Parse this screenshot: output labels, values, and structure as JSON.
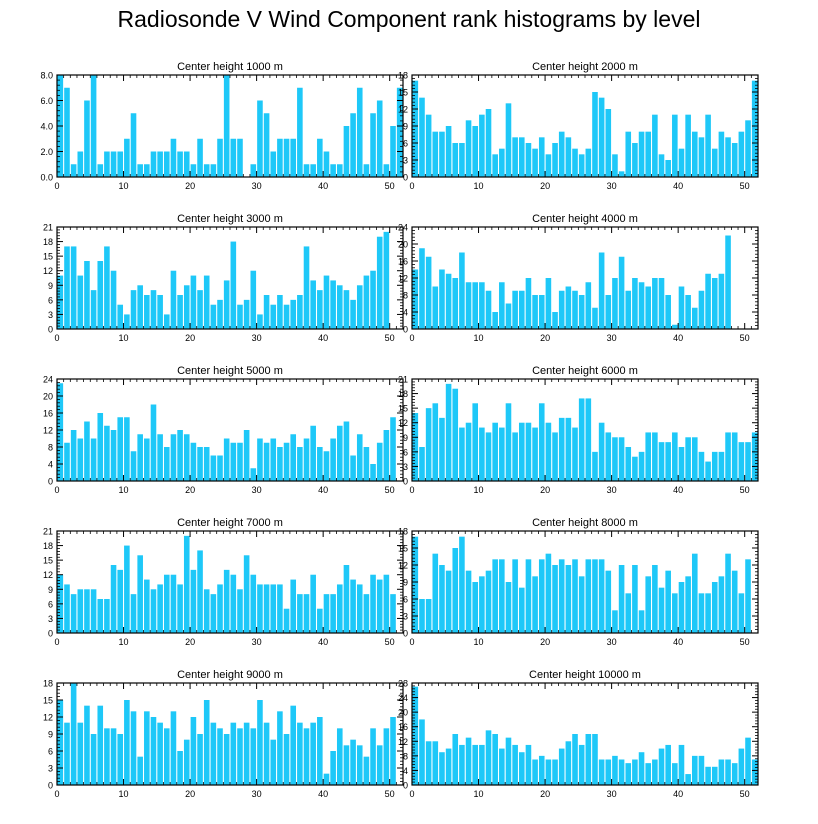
{
  "title": "Radiosonde V Wind Component rank histograms by level",
  "bar_color": "#1ec8f8",
  "chart_data": [
    {
      "type": "bar",
      "title": "Center height 1000 m",
      "xlabel": "",
      "ylabel": "",
      "xlim": [
        0,
        52
      ],
      "ylim": [
        0,
        8
      ],
      "yticks": [
        0,
        2,
        4,
        6,
        8
      ],
      "ytick_labels": [
        "0.0",
        "2.0",
        "4.0",
        "6.0",
        "8.0"
      ],
      "xticks": [
        0,
        10,
        20,
        30,
        40,
        50
      ],
      "values": [
        8,
        7,
        1,
        2,
        6,
        8,
        1,
        2,
        2,
        2,
        3,
        5,
        1,
        1,
        2,
        2,
        2,
        3,
        2,
        2,
        1,
        3,
        1,
        1,
        3,
        8,
        3,
        3,
        0,
        1,
        6,
        5,
        2,
        3,
        3,
        3,
        7,
        1,
        1,
        3,
        2,
        1,
        1,
        4,
        5,
        7,
        1,
        5,
        6,
        1,
        4,
        7
      ]
    },
    {
      "type": "bar",
      "title": "Center height 2000 m",
      "xlabel": "",
      "ylabel": "",
      "xlim": [
        0,
        52
      ],
      "ylim": [
        0,
        18
      ],
      "yticks": [
        0,
        3,
        6,
        9,
        12,
        15,
        18
      ],
      "ytick_labels": [
        "0",
        "3",
        "6",
        "9",
        "12",
        "15",
        "18"
      ],
      "xticks": [
        0,
        10,
        20,
        30,
        40,
        50
      ],
      "values": [
        17,
        14,
        11,
        8,
        8,
        9,
        6,
        6,
        10,
        9,
        11,
        12,
        4,
        5,
        13,
        7,
        7,
        6,
        5,
        7,
        4,
        6,
        8,
        7,
        5,
        4,
        5,
        15,
        14,
        12,
        4,
        1,
        8,
        6,
        8,
        8,
        11,
        4,
        3,
        11,
        5,
        11,
        8,
        7,
        11,
        5,
        8,
        7,
        6,
        8,
        10,
        17
      ]
    },
    {
      "type": "bar",
      "title": "Center height 3000 m",
      "xlabel": "",
      "ylabel": "",
      "xlim": [
        0,
        52
      ],
      "ylim": [
        0,
        21
      ],
      "yticks": [
        0,
        3,
        6,
        9,
        12,
        15,
        18,
        21
      ],
      "ytick_labels": [
        "0",
        "3",
        "6",
        "9",
        "12",
        "15",
        "18",
        "21"
      ],
      "xticks": [
        0,
        10,
        20,
        30,
        40,
        50
      ],
      "values": [
        11,
        17,
        17,
        11,
        14,
        8,
        14,
        17,
        12,
        5,
        3,
        8,
        9,
        7,
        8,
        7,
        3,
        12,
        7,
        9,
        11,
        8,
        11,
        5,
        6,
        10,
        18,
        5,
        6,
        12,
        3,
        7,
        5,
        7,
        5,
        6,
        7,
        17,
        10,
        8,
        11,
        10,
        9,
        8,
        6,
        9,
        11,
        12,
        19,
        20,
        0,
        0
      ]
    },
    {
      "type": "bar",
      "title": "Center height 4000 m",
      "xlabel": "",
      "ylabel": "",
      "xlim": [
        0,
        52
      ],
      "ylim": [
        0,
        24
      ],
      "yticks": [
        0,
        4,
        8,
        12,
        16,
        20,
        24
      ],
      "ytick_labels": [
        "0",
        "4",
        "8",
        "12",
        "16",
        "20",
        "24"
      ],
      "xticks": [
        0,
        10,
        20,
        30,
        40,
        50
      ],
      "values": [
        14,
        19,
        17,
        10,
        14,
        13,
        12,
        18,
        11,
        11,
        11,
        9,
        4,
        11,
        6,
        9,
        9,
        12,
        8,
        8,
        12,
        4,
        9,
        10,
        9,
        8,
        11,
        5,
        18,
        8,
        12,
        17,
        9,
        12,
        11,
        10,
        12,
        12,
        8,
        1,
        10,
        8,
        5,
        9,
        13,
        12,
        13,
        22,
        0,
        0,
        0,
        0
      ]
    },
    {
      "type": "bar",
      "title": "Center height 5000 m",
      "xlabel": "",
      "ylabel": "",
      "xlim": [
        0,
        52
      ],
      "ylim": [
        0,
        24
      ],
      "yticks": [
        0,
        4,
        8,
        12,
        16,
        20,
        24
      ],
      "ytick_labels": [
        "0",
        "4",
        "8",
        "12",
        "16",
        "20",
        "24"
      ],
      "xticks": [
        0,
        10,
        20,
        30,
        40,
        50
      ],
      "values": [
        23,
        9,
        12,
        10,
        14,
        10,
        16,
        13,
        12,
        15,
        15,
        7,
        11,
        10,
        18,
        11,
        8,
        11,
        12,
        11,
        9,
        8,
        8,
        6,
        6,
        10,
        9,
        9,
        12,
        3,
        10,
        9,
        10,
        8,
        9,
        11,
        8,
        10,
        13,
        8,
        7,
        10,
        13,
        14,
        6,
        11,
        8,
        4,
        9,
        12,
        15,
        0
      ]
    },
    {
      "type": "bar",
      "title": "Center height 6000 m",
      "xlabel": "",
      "ylabel": "",
      "xlim": [
        0,
        52
      ],
      "ylim": [
        0,
        21
      ],
      "yticks": [
        0,
        3,
        6,
        9,
        12,
        15,
        18,
        21
      ],
      "ytick_labels": [
        "0",
        "3",
        "6",
        "9",
        "12",
        "15",
        "18",
        "21"
      ],
      "xticks": [
        0,
        10,
        20,
        30,
        40,
        50
      ],
      "values": [
        14,
        7,
        15,
        16,
        13,
        20,
        19,
        11,
        12,
        16,
        11,
        10,
        12,
        11,
        16,
        10,
        12,
        12,
        11,
        16,
        12,
        10,
        13,
        13,
        11,
        17,
        17,
        6,
        12,
        10,
        9,
        9,
        7,
        5,
        6,
        10,
        10,
        8,
        8,
        10,
        7,
        9,
        9,
        6,
        4,
        6,
        6,
        10,
        10,
        8,
        8,
        10
      ]
    },
    {
      "type": "bar",
      "title": "Center height 7000 m",
      "xlabel": "",
      "ylabel": "",
      "xlim": [
        0,
        52
      ],
      "ylim": [
        0,
        21
      ],
      "yticks": [
        0,
        3,
        6,
        9,
        12,
        15,
        18,
        21
      ],
      "ytick_labels": [
        "0",
        "3",
        "6",
        "9",
        "12",
        "15",
        "18",
        "21"
      ],
      "xticks": [
        0,
        10,
        20,
        30,
        40,
        50
      ],
      "values": [
        12,
        10,
        8,
        9,
        9,
        9,
        7,
        7,
        14,
        13,
        18,
        8,
        16,
        11,
        9,
        10,
        12,
        12,
        10,
        20,
        13,
        17,
        9,
        8,
        10,
        13,
        12,
        9,
        16,
        12,
        10,
        10,
        10,
        10,
        5,
        11,
        8,
        8,
        12,
        5,
        8,
        8,
        10,
        14,
        11,
        10,
        8,
        12,
        11,
        12,
        8,
        0
      ]
    },
    {
      "type": "bar",
      "title": "Center height 8000 m",
      "xlabel": "",
      "ylabel": "",
      "xlim": [
        0,
        52
      ],
      "ylim": [
        0,
        18
      ],
      "yticks": [
        0,
        3,
        6,
        9,
        12,
        15,
        18
      ],
      "ytick_labels": [
        "0",
        "3",
        "6",
        "9",
        "12",
        "15",
        "18"
      ],
      "xticks": [
        0,
        10,
        20,
        30,
        40,
        50
      ],
      "values": [
        17,
        6,
        6,
        14,
        12,
        11,
        15,
        17,
        11,
        9,
        10,
        11,
        13,
        13,
        9,
        13,
        8,
        13,
        10,
        13,
        14,
        12,
        13,
        12,
        13,
        10,
        13,
        13,
        13,
        11,
        4,
        12,
        7,
        12,
        4,
        10,
        12,
        8,
        11,
        7,
        9,
        10,
        14,
        7,
        7,
        9,
        10,
        14,
        11,
        7,
        13,
        0
      ]
    },
    {
      "type": "bar",
      "title": "Center height 9000 m",
      "xlabel": "",
      "ylabel": "",
      "xlim": [
        0,
        52
      ],
      "ylim": [
        0,
        18
      ],
      "yticks": [
        0,
        3,
        6,
        9,
        12,
        15,
        18
      ],
      "ytick_labels": [
        "0",
        "3",
        "6",
        "9",
        "12",
        "15",
        "18"
      ],
      "xticks": [
        0,
        10,
        20,
        30,
        40,
        50
      ],
      "values": [
        15,
        11,
        18,
        11,
        14,
        9,
        14,
        10,
        10,
        9,
        15,
        13,
        5,
        13,
        12,
        11,
        10,
        13,
        6,
        8,
        12,
        9,
        15,
        11,
        10,
        9,
        11,
        10,
        11,
        10,
        15,
        11,
        8,
        13,
        9,
        14,
        11,
        10,
        11,
        12,
        2,
        6,
        10,
        7,
        8,
        7,
        5,
        10,
        7,
        10,
        12,
        0
      ]
    },
    {
      "type": "bar",
      "title": "Center height 10000 m",
      "xlabel": "",
      "ylabel": "",
      "xlim": [
        0,
        52
      ],
      "ylim": [
        0,
        28
      ],
      "yticks": [
        0,
        4,
        8,
        12,
        16,
        20,
        24,
        28
      ],
      "ytick_labels": [
        "0",
        "4",
        "8",
        "12",
        "16",
        "20",
        "24",
        "28"
      ],
      "xticks": [
        0,
        10,
        20,
        30,
        40,
        50
      ],
      "values": [
        27,
        18,
        12,
        12,
        9,
        10,
        14,
        11,
        13,
        11,
        11,
        15,
        14,
        10,
        13,
        11,
        9,
        11,
        7,
        8,
        7,
        7,
        10,
        12,
        14,
        11,
        14,
        14,
        7,
        7,
        8,
        7,
        6,
        7,
        9,
        6,
        7,
        10,
        11,
        6,
        11,
        3,
        8,
        8,
        5,
        5,
        7,
        7,
        6,
        10,
        13,
        7
      ]
    }
  ]
}
